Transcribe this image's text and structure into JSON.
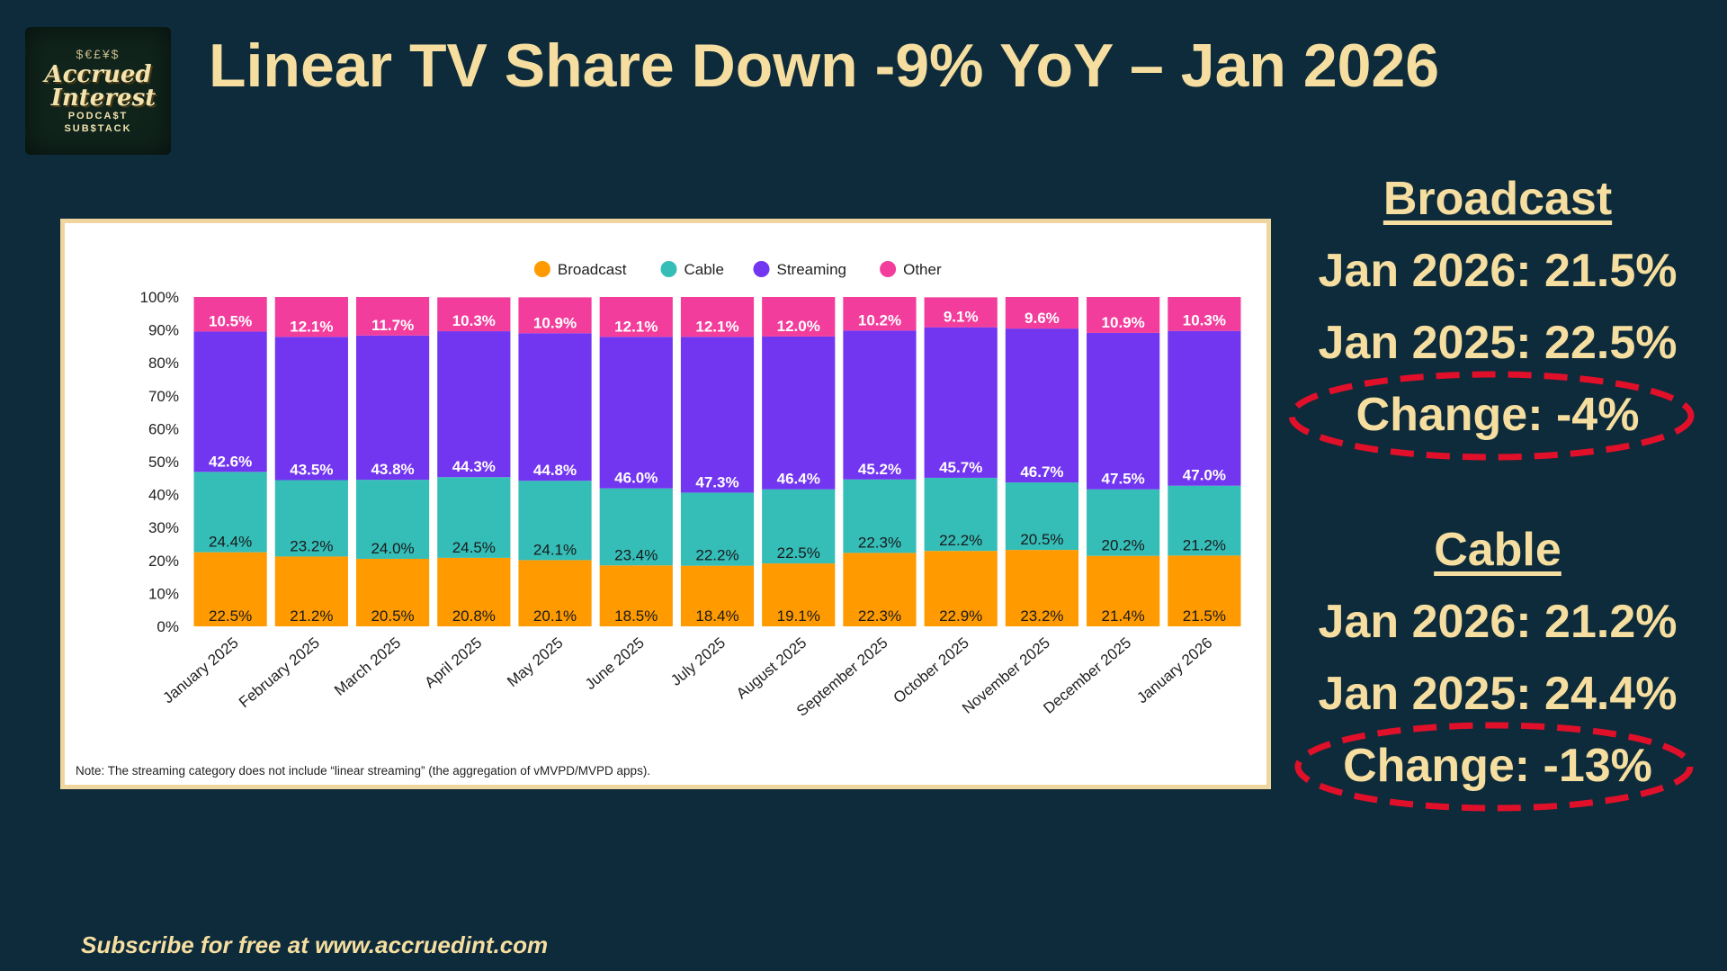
{
  "title": "Linear TV Share Down -9% YoY – Jan 2026",
  "logo": {
    "line1": "Accrued",
    "line2": "Interest",
    "line3": "PODCA$T",
    "line4": "SUB$TACK",
    "coins": "$€£¥$"
  },
  "sidebar": {
    "broadcast": {
      "heading": "Broadcast",
      "current": "Jan 2026: 21.5%",
      "prior": "Jan 2025: 22.5%",
      "change": "Change: -4%"
    },
    "cable": {
      "heading": "Cable",
      "current": "Jan 2026: 21.2%",
      "prior": "Jan 2025: 24.4%",
      "change": "Change: -13%"
    }
  },
  "footer": "Subscribe for free at www.accruedint.com",
  "colors": {
    "background": "#0d2b3a",
    "accent_text": "#f6dea0",
    "broadcast": "#ff9a00",
    "cable": "#35bdb8",
    "streaming": "#7235f0",
    "other": "#f23d9c",
    "highlight": "#e0102a"
  },
  "chart_data": {
    "type": "bar",
    "stacked": true,
    "note": "Note: The streaming category does not include “linear streaming” (the aggregation of vMVPD/MVPD apps).",
    "ylim": [
      0,
      100
    ],
    "yticks": [
      "0%",
      "10%",
      "20%",
      "30%",
      "40%",
      "50%",
      "60%",
      "70%",
      "80%",
      "90%",
      "100%"
    ],
    "legend_position": "top-center",
    "categories": [
      "January 2025",
      "February 2025",
      "March 2025",
      "April 2025",
      "May 2025",
      "June 2025",
      "July 2025",
      "August 2025",
      "September 2025",
      "October 2025",
      "November 2025",
      "December 2025",
      "January 2026"
    ],
    "series": [
      {
        "name": "Broadcast",
        "color": "#ff9a00",
        "values": [
          22.5,
          21.2,
          20.5,
          20.8,
          20.1,
          18.5,
          18.4,
          19.1,
          22.3,
          22.9,
          23.2,
          21.4,
          21.5
        ]
      },
      {
        "name": "Cable",
        "color": "#35bdb8",
        "values": [
          24.4,
          23.2,
          24.0,
          24.5,
          24.1,
          23.4,
          22.2,
          22.5,
          22.3,
          22.2,
          20.5,
          20.2,
          21.2
        ]
      },
      {
        "name": "Streaming",
        "color": "#7235f0",
        "values": [
          42.6,
          43.5,
          43.8,
          44.3,
          44.8,
          46.0,
          47.3,
          46.4,
          45.2,
          45.7,
          46.7,
          47.5,
          47.0
        ]
      },
      {
        "name": "Other",
        "color": "#f23d9c",
        "values": [
          10.5,
          12.1,
          11.7,
          10.3,
          10.9,
          12.1,
          12.1,
          12.0,
          10.2,
          9.1,
          9.6,
          10.9,
          10.3
        ]
      }
    ]
  }
}
